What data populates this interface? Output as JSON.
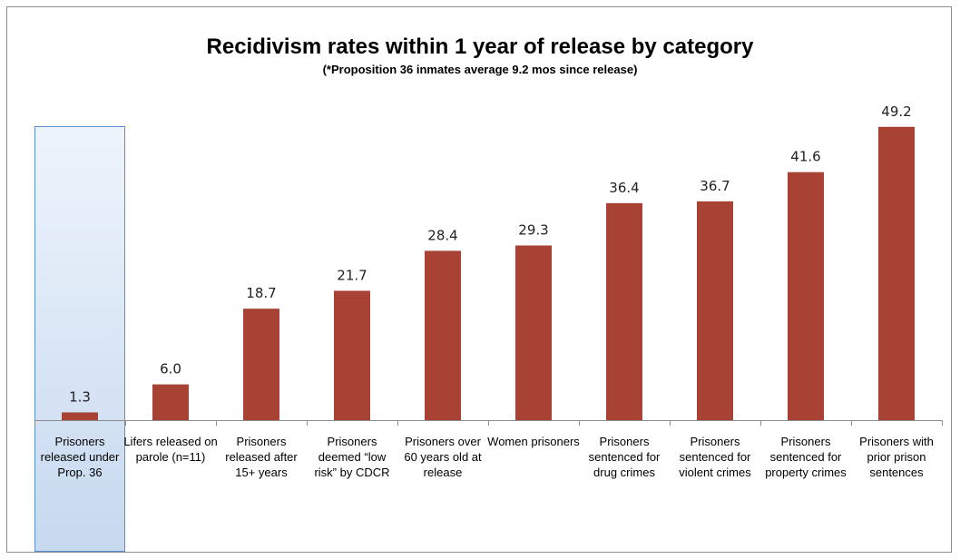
{
  "chart_data": {
    "type": "bar",
    "title": "Recidivism rates within 1 year of release by category",
    "subtitle": "(*Proposition 36 inmates average 9.2 mos since release)",
    "categories": [
      [
        "Prisoners",
        "released under",
        "Prop. 36"
      ],
      [
        "Lifers released on",
        "parole (n=11)"
      ],
      [
        "Prisoners",
        "released after",
        "15+ years"
      ],
      [
        "Prisoners",
        "deemed “low",
        "risk” by CDCR"
      ],
      [
        "Prisoners over",
        "60 years old at",
        "release"
      ],
      [
        "Women prisoners"
      ],
      [
        "Prisoners",
        "sentenced for",
        "drug crimes"
      ],
      [
        "Prisoners",
        "sentenced for",
        "violent crimes"
      ],
      [
        "Prisoners",
        "sentenced for",
        "property crimes"
      ],
      [
        "Prisoners with",
        "prior prison",
        "sentences"
      ]
    ],
    "values": [
      1.3,
      6.0,
      18.7,
      21.7,
      28.4,
      29.3,
      36.4,
      36.7,
      41.6,
      49.2
    ],
    "value_labels": [
      "1.3",
      "6.0",
      "18.7",
      "21.7",
      "28.4",
      "29.3",
      "36.4",
      "36.7",
      "41.6",
      "49.2"
    ],
    "highlighted_category_index": 0,
    "bar_color": "#a84235",
    "highlight_fill": "#dce8f7",
    "highlight_border": "#5b8fd0",
    "ylim": [
      0,
      55
    ],
    "grid": false,
    "legend": "none"
  }
}
